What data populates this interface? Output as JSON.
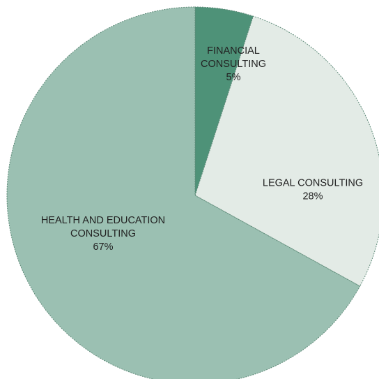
{
  "chart_data": {
    "type": "pie",
    "slices": [
      {
        "key": "financial",
        "label_lines": [
          "FINANCIAL",
          "CONSULTING",
          "5%"
        ],
        "label": "FINANCIAL CONSULTING",
        "percent_label": "5%",
        "value": 5,
        "color": "#4e9278"
      },
      {
        "key": "legal",
        "label_lines": [
          "LEGAL CONSULTING",
          "28%"
        ],
        "label": "LEGAL CONSULTING",
        "percent_label": "28%",
        "value": 28,
        "color": "#e3ebe6"
      },
      {
        "key": "health",
        "label_lines": [
          "HEALTH AND EDUCATION",
          "CONSULTING",
          "67%"
        ],
        "label": "HEALTH AND EDUCATION CONSULTING",
        "percent_label": "67%",
        "value": 67,
        "color": "#9bc0b2"
      }
    ],
    "start_angle_deg": 0,
    "direction": "clockwise",
    "legend": "none",
    "title": ""
  }
}
